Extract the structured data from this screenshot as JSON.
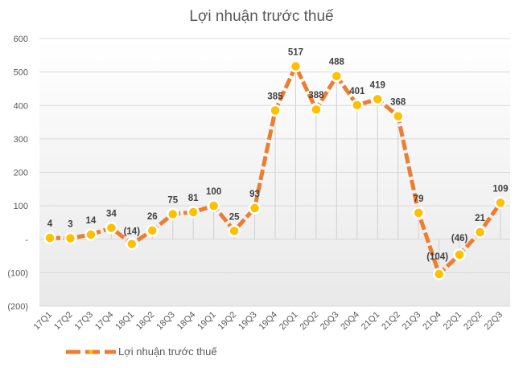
{
  "chart_data": {
    "type": "line",
    "title": "Lợi nhuận trước thuế",
    "xlabel": "",
    "ylabel": "",
    "ylim": [
      -200,
      600
    ],
    "y_ticks": [
      600,
      500,
      400,
      300,
      200,
      100,
      0,
      -100,
      -200
    ],
    "y_tick_labels": [
      "600",
      "500",
      "400",
      "300",
      "200",
      "100",
      "-",
      "(100)",
      "(200)"
    ],
    "grid": true,
    "legend_position": "bottom-left",
    "categories": [
      "17Q1",
      "17Q2",
      "17Q3",
      "17Q4",
      "18Q1",
      "18Q2",
      "18Q3",
      "18Q4",
      "19Q1",
      "19Q2",
      "19Q3",
      "19Q4",
      "20Q1",
      "20Q2",
      "20Q3",
      "20Q4",
      "21Q1",
      "21Q2",
      "21Q3",
      "21Q4",
      "22Q1",
      "22Q2",
      "22Q3"
    ],
    "series": [
      {
        "name": "Lợi nhuận trước thuế",
        "values": [
          4,
          3,
          14,
          34,
          -14,
          26,
          75,
          81,
          100,
          25,
          93,
          385,
          517,
          388,
          488,
          401,
          419,
          368,
          79,
          -104,
          -46,
          21,
          109
        ],
        "data_labels": [
          "4",
          "3",
          "14",
          "34",
          "(14)",
          "26",
          "75",
          "81",
          "100",
          "25",
          "93",
          "385",
          "517",
          "388",
          "488",
          "401",
          "419",
          "368",
          "79",
          "(104)",
          "(46)",
          "21",
          "109"
        ],
        "line_color": "#ED7D31",
        "marker_color": "#FFC000",
        "line_style": "dashed"
      }
    ]
  },
  "legend": {
    "label": "Lợi nhuận trước thuế"
  }
}
